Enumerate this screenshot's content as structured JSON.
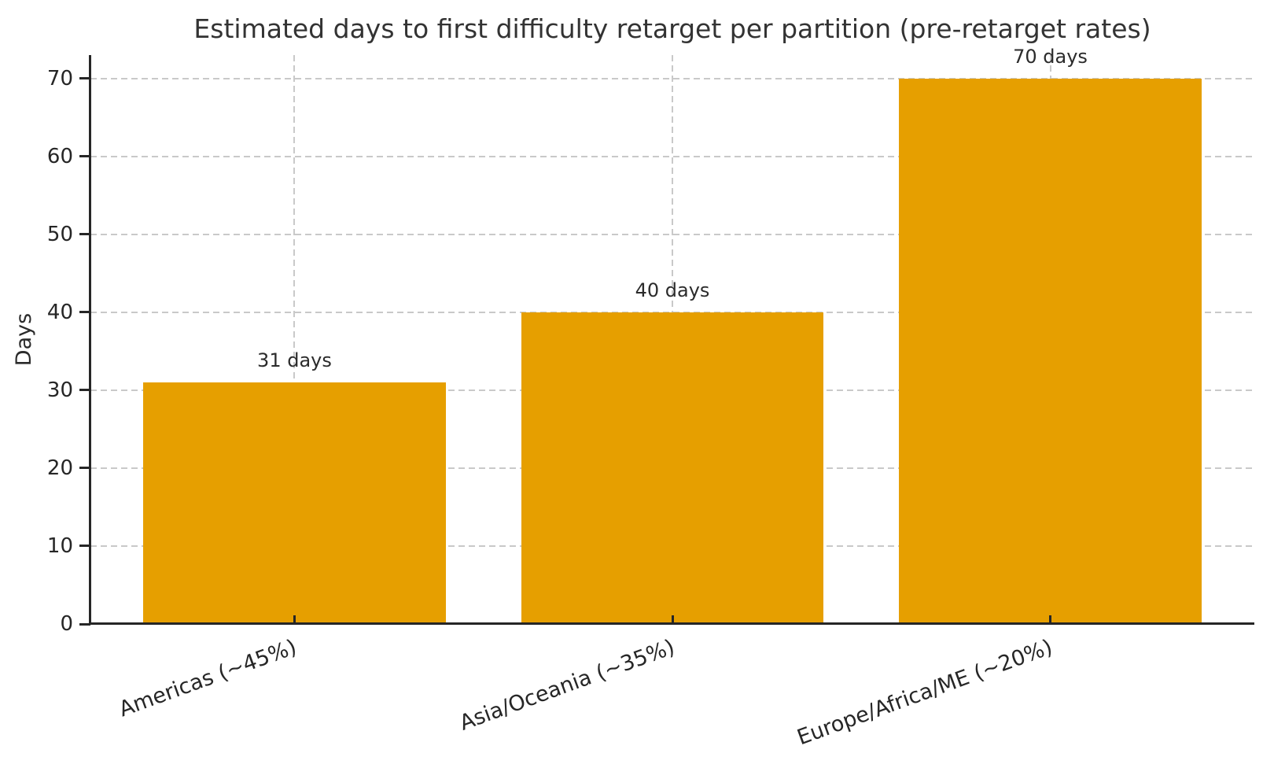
{
  "chart_data": {
    "type": "bar",
    "title": "Estimated days to first difficulty retarget per partition (pre-retarget rates)",
    "ylabel": "Days",
    "xlabel": "",
    "categories": [
      "Americas (~45%)",
      "Asia/Oceania (~35%)",
      "Europe/Africa/ME (~20%)"
    ],
    "values": [
      31,
      40,
      70
    ],
    "bar_value_labels": [
      "31 days",
      "40 days",
      "70 days"
    ],
    "yticks": [
      0,
      10,
      20,
      30,
      40,
      50,
      60,
      70
    ],
    "ylim": [
      0,
      73
    ],
    "grid": "dashed, horizontal at y-ticks and vertical at bar centers",
    "legend_position": "none",
    "bar_color": "#E69F00",
    "grid_color": "#C9C9C9",
    "axis_color": "#262626",
    "text_color": "#2B2B2B",
    "x_tick_label_rotation_deg": 20
  }
}
